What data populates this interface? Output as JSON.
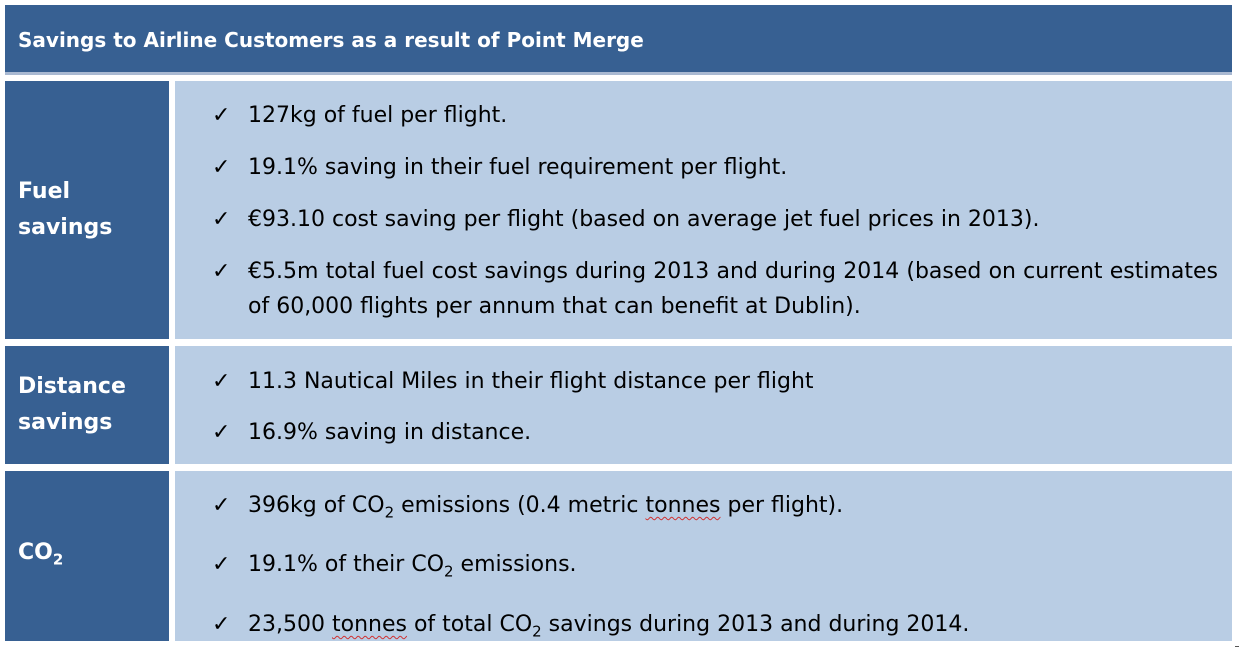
{
  "title": "Savings to Airline Customers as a result of Point Merge",
  "check_glyph": "✓",
  "rows": {
    "fuel": {
      "label_line1": "Fuel",
      "label_line2": "savings",
      "items": [
        "127kg of fuel per flight.",
        "19.1% saving in their fuel requirement per flight.",
        "€93.10 cost saving per flight (based on average jet fuel prices in 2013).",
        "€5.5m total fuel cost savings during 2013 and during 2014 (based on current estimates of 60,000 flights per annum that can benefit at Dublin)."
      ]
    },
    "distance": {
      "label_line1": "Distance",
      "label_line2": "savings",
      "items": [
        "11.3 Nautical Miles in their flight distance per flight",
        "16.9% saving in distance."
      ]
    },
    "co2": {
      "label_main": "CO",
      "label_sub": "2",
      "item1_a": "396kg of CO",
      "item1_sub": "2",
      "item1_b": " emissions (0.4 metric ",
      "item1_c": "tonnes",
      "item1_d": " per flight).",
      "item2_a": "19.1% of their CO",
      "item2_sub": "2",
      "item2_b": " emissions.",
      "item3_a": "23,500 ",
      "item3_b": "tonnes",
      "item3_c": " of total CO",
      "item3_sub": "2",
      "item3_d": " savings during 2013 and during 2014."
    }
  }
}
